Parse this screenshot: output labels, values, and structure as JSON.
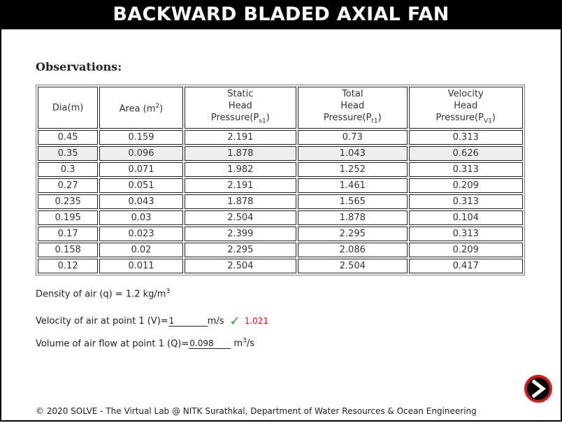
{
  "header": {
    "title": "BACKWARD BLADED AXIAL FAN"
  },
  "observations": {
    "heading": "Observations:",
    "columns": [
      {
        "label": "Dia(m)"
      },
      {
        "label": "Area (m",
        "sup": "2",
        "tail": ")"
      },
      {
        "lines": [
          "Static",
          "Head"
        ],
        "prefix": "Pressure(P",
        "sub": "s1",
        "suffix": ")"
      },
      {
        "lines": [
          "Total",
          "Head"
        ],
        "prefix": "Pressure(P",
        "sub": "t1",
        "suffix": ")"
      },
      {
        "lines": [
          "Velocity",
          "Head"
        ],
        "prefix": "Pressure(P",
        "sub": "V1",
        "suffix": ")"
      }
    ],
    "rows": [
      [
        "0.45",
        "0.159",
        "2.191",
        "0.73",
        "0.313"
      ],
      [
        "0.35",
        "0.096",
        "1.878",
        "1.043",
        "0.626"
      ],
      [
        "0.3",
        "0.071",
        "1.982",
        "1.252",
        "0.313"
      ],
      [
        "0.27",
        "0.051",
        "2.191",
        "1.461",
        "0.209"
      ],
      [
        "0.235",
        "0.043",
        "1.878",
        "1.565",
        "0.313"
      ],
      [
        "0.195",
        "0.03",
        "2.504",
        "1.878",
        "0.104"
      ],
      [
        "0.17",
        "0.023",
        "2.399",
        "2.295",
        "0.313"
      ],
      [
        "0.158",
        "0.02",
        "2.295",
        "2.086",
        "0.209"
      ],
      [
        "0.12",
        "0.011",
        "2.504",
        "2.504",
        "0.417"
      ]
    ],
    "highlighted_row": 1
  },
  "density": {
    "label": "Density of air (q) = 1.2 kg/m",
    "sup": "3"
  },
  "velocity": {
    "label": "Velocity of air at point 1 (V)=",
    "value": "1",
    "unit": "m/s",
    "check": "✓",
    "result": "1.021",
    "check_color": "#1fa11f",
    "result_color": "#e01a1a"
  },
  "volume": {
    "label": "Volume of air flow at point 1 (Q)=",
    "value": "0.098",
    "unit": "m",
    "unit_sup": "3",
    "unit_tail": "/s"
  },
  "next_button": {
    "icon": "next-arrow-icon",
    "color": "#d91a1a"
  },
  "footer": {
    "text": "© 2020 SOLVE - The Virtual Lab @ NITK Surathkal, Department of Water Resources & Ocean Engineering"
  }
}
